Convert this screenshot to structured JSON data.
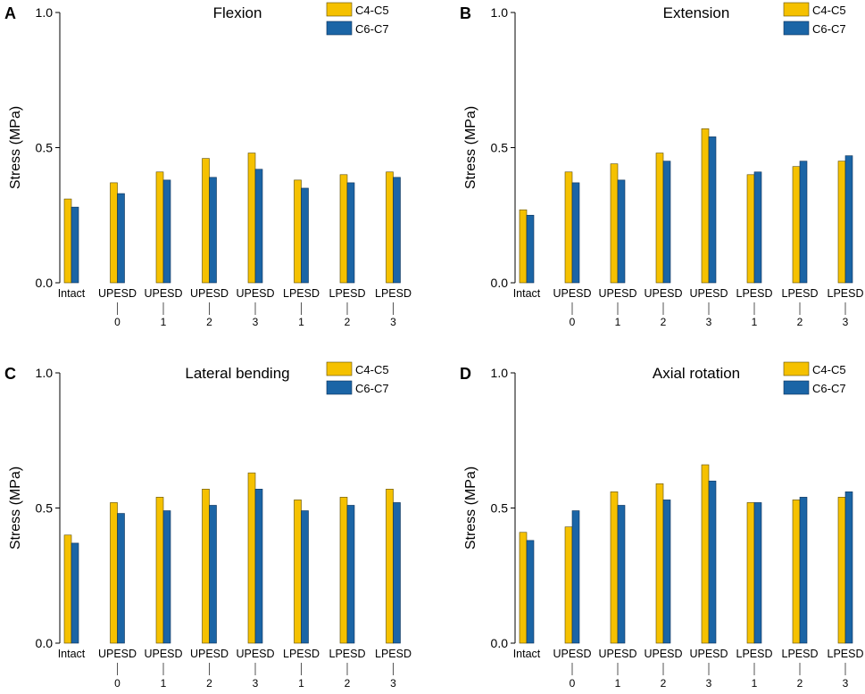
{
  "legend": {
    "series1_label": "C4-C5",
    "series2_label": "C6-C7",
    "series1_color": "#F5C100",
    "series2_color": "#1B65A6"
  },
  "chart_data": [
    {
      "panel": "A",
      "type": "bar",
      "title": "Flexion",
      "ylabel": "Stress (MPa)",
      "xlabel": "",
      "ylim": [
        0,
        1.0
      ],
      "yticks": [
        "0.0",
        "0.5",
        "1.0"
      ],
      "categories": [
        {
          "name": "Intact",
          "num": ""
        },
        {
          "name": "UPESD",
          "num": "0"
        },
        {
          "name": "UPESD",
          "num": "1"
        },
        {
          "name": "UPESD",
          "num": "2"
        },
        {
          "name": "UPESD",
          "num": "3"
        },
        {
          "name": "LPESD",
          "num": "1"
        },
        {
          "name": "LPESD",
          "num": "2"
        },
        {
          "name": "LPESD",
          "num": "3"
        }
      ],
      "series": [
        {
          "name": "C4-C5",
          "values": [
            0.31,
            0.37,
            0.41,
            0.46,
            0.48,
            0.38,
            0.4,
            0.41
          ]
        },
        {
          "name": "C6-C7",
          "values": [
            0.28,
            0.33,
            0.38,
            0.39,
            0.42,
            0.35,
            0.37,
            0.39
          ]
        }
      ]
    },
    {
      "panel": "B",
      "type": "bar",
      "title": "Extension",
      "ylabel": "Stress (MPa)",
      "xlabel": "",
      "ylim": [
        0,
        1.0
      ],
      "yticks": [
        "0.0",
        "0.5",
        "1.0"
      ],
      "categories": [
        {
          "name": "Intact",
          "num": ""
        },
        {
          "name": "UPESD",
          "num": "0"
        },
        {
          "name": "UPESD",
          "num": "1"
        },
        {
          "name": "UPESD",
          "num": "2"
        },
        {
          "name": "UPESD",
          "num": "3"
        },
        {
          "name": "LPESD",
          "num": "1"
        },
        {
          "name": "LPESD",
          "num": "2"
        },
        {
          "name": "LPESD",
          "num": "3"
        }
      ],
      "series": [
        {
          "name": "C4-C5",
          "values": [
            0.27,
            0.41,
            0.44,
            0.48,
            0.57,
            0.4,
            0.43,
            0.45
          ]
        },
        {
          "name": "C6-C7",
          "values": [
            0.25,
            0.37,
            0.38,
            0.45,
            0.54,
            0.41,
            0.45,
            0.47
          ]
        }
      ]
    },
    {
      "panel": "C",
      "type": "bar",
      "title": "Lateral bending",
      "ylabel": "Stress (MPa)",
      "xlabel": "",
      "ylim": [
        0,
        1.0
      ],
      "yticks": [
        "0.0",
        "0.5",
        "1.0"
      ],
      "categories": [
        {
          "name": "Intact",
          "num": ""
        },
        {
          "name": "UPESD",
          "num": "0"
        },
        {
          "name": "UPESD",
          "num": "1"
        },
        {
          "name": "UPESD",
          "num": "2"
        },
        {
          "name": "UPESD",
          "num": "3"
        },
        {
          "name": "LPESD",
          "num": "1"
        },
        {
          "name": "LPESD",
          "num": "2"
        },
        {
          "name": "LPESD",
          "num": "3"
        }
      ],
      "series": [
        {
          "name": "C4-C5",
          "values": [
            0.4,
            0.52,
            0.54,
            0.57,
            0.63,
            0.53,
            0.54,
            0.57
          ]
        },
        {
          "name": "C6-C7",
          "values": [
            0.37,
            0.48,
            0.49,
            0.51,
            0.57,
            0.49,
            0.51,
            0.52
          ]
        }
      ]
    },
    {
      "panel": "D",
      "type": "bar",
      "title": "Axial rotation",
      "ylabel": "Stress (MPa)",
      "xlabel": "",
      "ylim": [
        0,
        1.0
      ],
      "yticks": [
        "0.0",
        "0.5",
        "1.0"
      ],
      "categories": [
        {
          "name": "Intact",
          "num": ""
        },
        {
          "name": "UPESD",
          "num": "0"
        },
        {
          "name": "UPESD",
          "num": "1"
        },
        {
          "name": "UPESD",
          "num": "2"
        },
        {
          "name": "UPESD",
          "num": "3"
        },
        {
          "name": "LPESD",
          "num": "1"
        },
        {
          "name": "LPESD",
          "num": "2"
        },
        {
          "name": "LPESD",
          "num": "3"
        }
      ],
      "series": [
        {
          "name": "C4-C5",
          "values": [
            0.41,
            0.43,
            0.56,
            0.59,
            0.66,
            0.52,
            0.53,
            0.54
          ]
        },
        {
          "name": "C6-C7",
          "values": [
            0.38,
            0.49,
            0.51,
            0.53,
            0.6,
            0.52,
            0.54,
            0.56
          ]
        }
      ]
    }
  ]
}
